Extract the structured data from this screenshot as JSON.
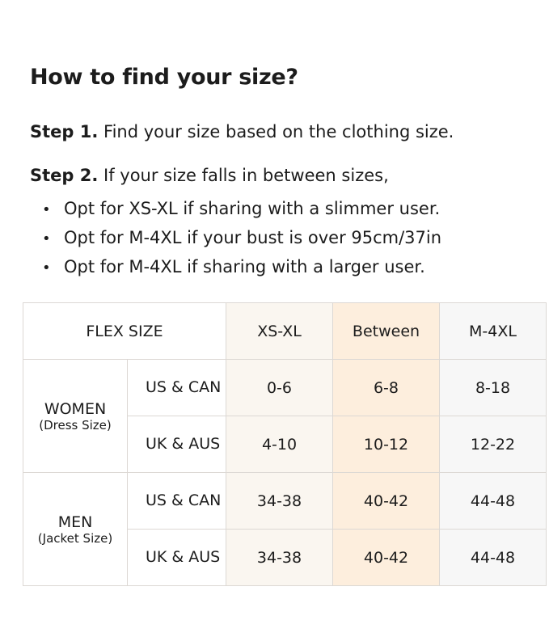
{
  "title": "How to find your size?",
  "step1": {
    "label": "Step 1.",
    "text": " Find your size based on the clothing size."
  },
  "step2": {
    "label": "Step 2.",
    "text": " If your size falls in between sizes,"
  },
  "bullets": [
    "Opt for XS-XL if sharing with a slimmer user.",
    "Opt for M-4XL if your bust is over 95cm/37in",
    "Opt for M-4XL if sharing with a larger user."
  ],
  "table": {
    "header": [
      "FLEX SIZE",
      "XS-XL",
      "Between",
      "M-4XL"
    ],
    "groups": [
      {
        "name": "WOMEN",
        "sub": "(Dress Size)",
        "rows": [
          {
            "region": "US & CAN",
            "values": [
              "0-6",
              "6-8",
              "8-18"
            ]
          },
          {
            "region": "UK & AUS",
            "values": [
              "4-10",
              "10-12",
              "12-22"
            ]
          }
        ]
      },
      {
        "name": "MEN",
        "sub": "(Jacket Size)",
        "rows": [
          {
            "region": "US & CAN",
            "values": [
              "34-38",
              "40-42",
              "44-48"
            ]
          },
          {
            "region": "UK & AUS",
            "values": [
              "34-38",
              "40-42",
              "44-48"
            ]
          }
        ]
      }
    ]
  },
  "colors": {
    "xs_col": "#faf6f0",
    "between_col": "#fdeedd",
    "m_col": "#f7f7f7",
    "border": "#dcd8d4"
  }
}
